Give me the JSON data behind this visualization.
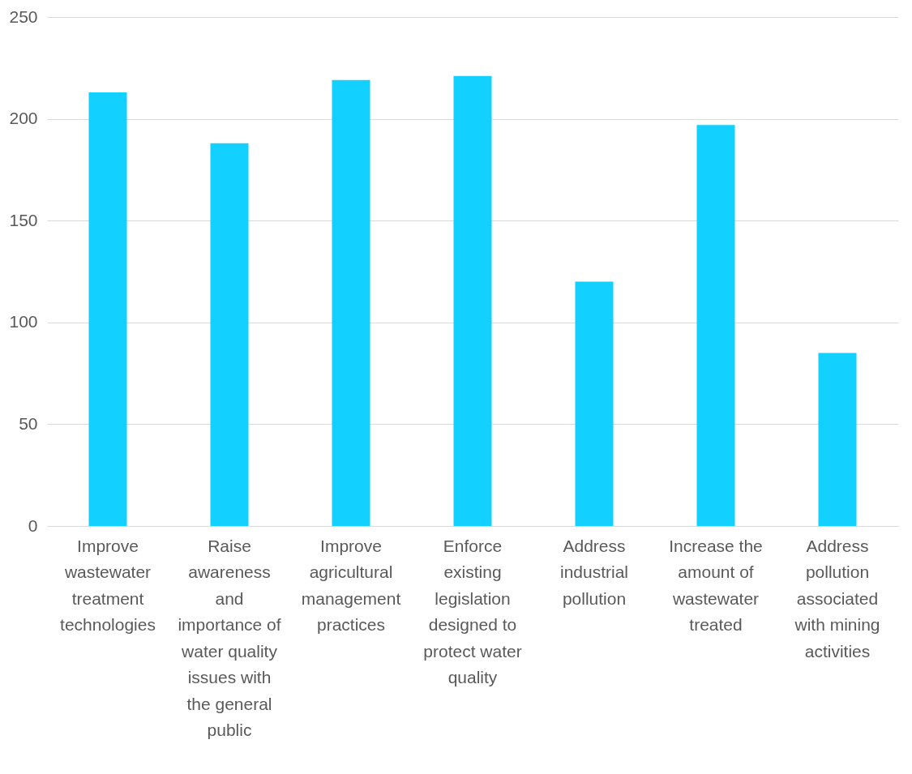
{
  "chart_data": {
    "type": "bar",
    "categories": [
      "Improve wastewater treatment technologies",
      "Raise awareness and importance of water quality issues with the general public",
      "Improve agricultural management practices",
      "Enforce existing legislation designed to protect water quality",
      "Address industrial pollution",
      "Increase the amount of wastewater treated",
      "Address pollution associated with mining activities"
    ],
    "values": [
      213,
      188,
      219,
      221,
      120,
      197,
      85
    ],
    "color": "#12d0ff",
    "ylim": [
      0,
      250
    ],
    "yticks": [
      0,
      50,
      100,
      150,
      200,
      250
    ],
    "grid": "y"
  }
}
